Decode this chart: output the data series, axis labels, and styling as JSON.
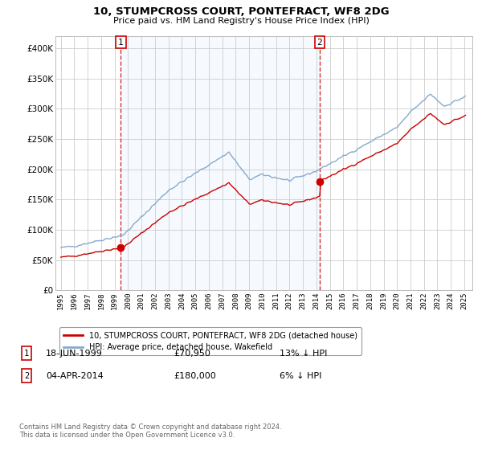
{
  "title": "10, STUMPCROSS COURT, PONTEFRACT, WF8 2DG",
  "subtitle": "Price paid vs. HM Land Registry's House Price Index (HPI)",
  "legend_line1": "10, STUMPCROSS COURT, PONTEFRACT, WF8 2DG (detached house)",
  "legend_line2": "HPI: Average price, detached house, Wakefield",
  "annotation1_date": "18-JUN-1999",
  "annotation1_price": 70950,
  "annotation1_price_str": "£70,950",
  "annotation1_hpi": "13% ↓ HPI",
  "annotation2_date": "04-APR-2014",
  "annotation2_price": 180000,
  "annotation2_price_str": "£180,000",
  "annotation2_hpi": "6% ↓ HPI",
  "footer": "Contains HM Land Registry data © Crown copyright and database right 2024.\nThis data is licensed under the Open Government Licence v3.0.",
  "price_color": "#cc0000",
  "hpi_color": "#88aacc",
  "vline_color": "#cc0000",
  "fill_color": "#ddeeff",
  "ylim": [
    0,
    420000
  ],
  "yticks": [
    0,
    50000,
    100000,
    150000,
    200000,
    250000,
    300000,
    350000,
    400000
  ],
  "background_color": "#ffffff",
  "grid_color": "#cccccc",
  "purchase1_year": 1999.46,
  "purchase1_price": 70950,
  "purchase2_year": 2014.25,
  "purchase2_price": 180000,
  "xmin": 1995,
  "xmax": 2025
}
